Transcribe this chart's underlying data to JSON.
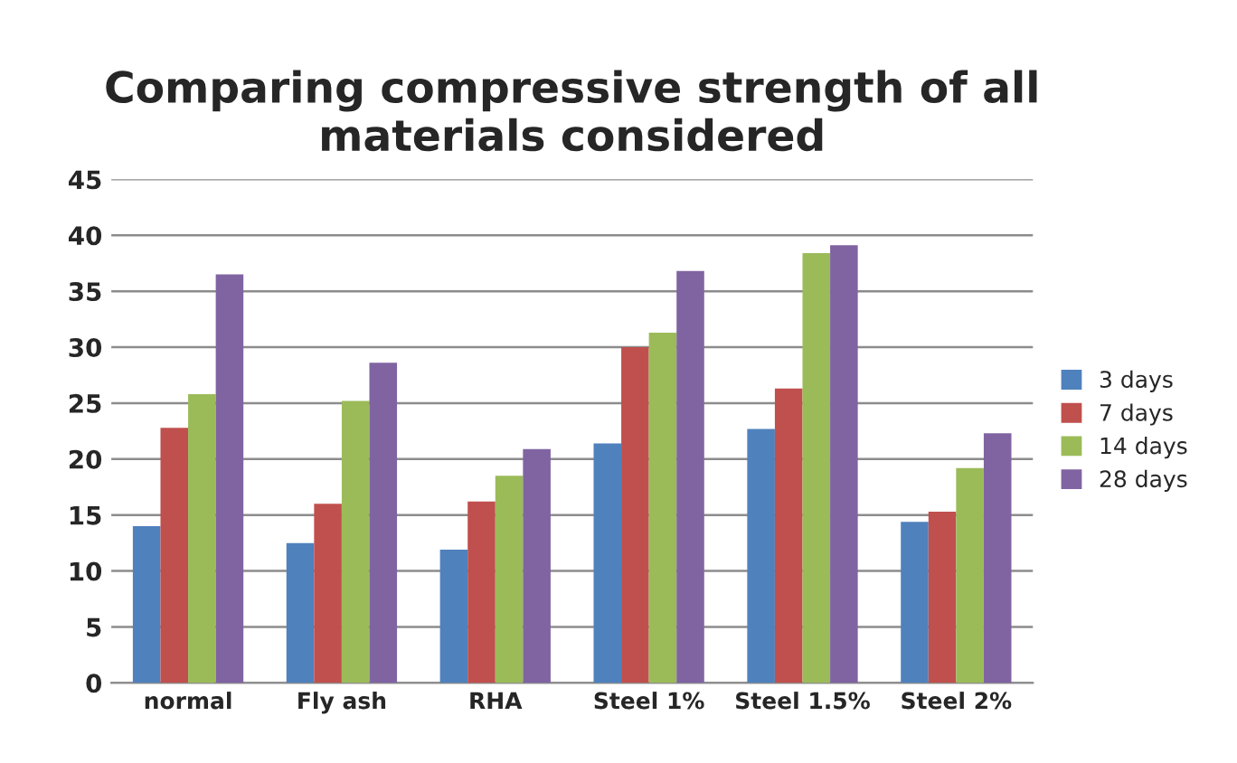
{
  "chart_data": {
    "type": "bar",
    "title": "Comparing compressive strength of all materials considered",
    "categories": [
      "normal",
      "Fly ash",
      "RHA",
      "Steel 1%",
      "Steel 1.5%",
      "Steel 2%"
    ],
    "series": [
      {
        "name": "3 days",
        "color": "#4f81bd",
        "values": [
          14.0,
          12.5,
          11.9,
          21.4,
          22.7,
          14.4
        ]
      },
      {
        "name": "7 days",
        "color": "#c0504d",
        "values": [
          22.8,
          16.0,
          16.2,
          30.0,
          26.3,
          15.3
        ]
      },
      {
        "name": "14 days",
        "color": "#9bbb59",
        "values": [
          25.8,
          25.2,
          18.5,
          31.3,
          38.4,
          19.2
        ]
      },
      {
        "name": "28 days",
        "color": "#8064a2",
        "values": [
          36.5,
          28.6,
          20.9,
          36.8,
          39.1,
          22.3
        ]
      }
    ],
    "ylim": [
      0,
      45
    ],
    "yticks": [
      0,
      5,
      10,
      15,
      20,
      25,
      30,
      35,
      40,
      45
    ],
    "grid": "y",
    "legend": "right"
  }
}
